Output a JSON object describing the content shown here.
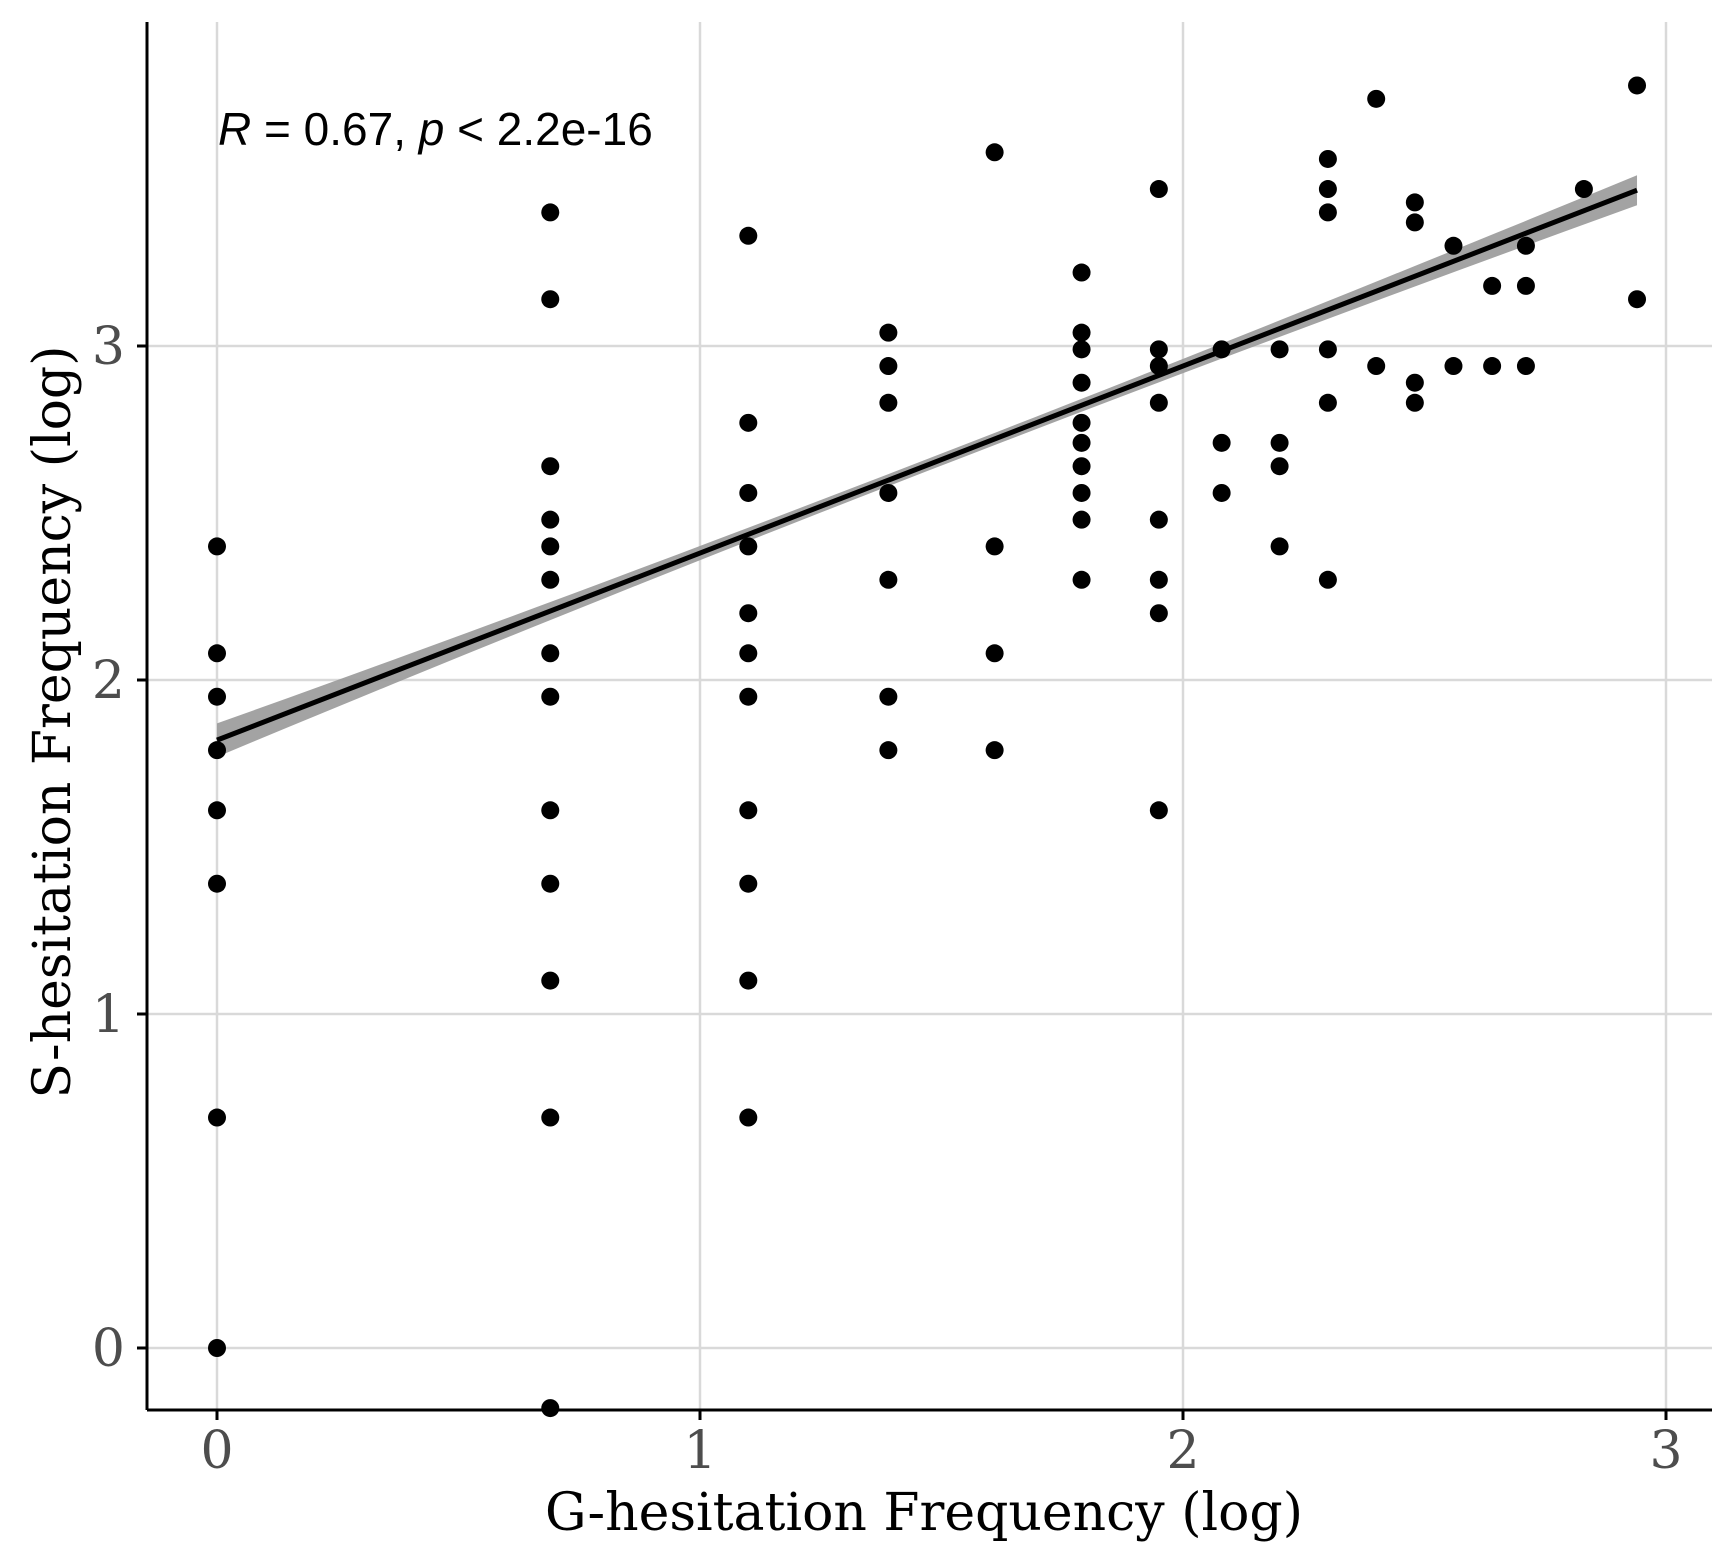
{
  "chart_data": {
    "type": "scatter",
    "xlabel": "G-hesitation Frequency (log)",
    "ylabel": "S-hesitation Frequency (log)",
    "xlim": [
      -0.14,
      3.03
    ],
    "ylim": [
      -0.19,
      4.0
    ],
    "x_ticks": [
      0,
      1,
      2,
      3
    ],
    "y_ticks": [
      0,
      1,
      2,
      3
    ],
    "x_tick_labels": [
      "0",
      "1",
      "2",
      "3"
    ],
    "y_tick_labels": [
      "0",
      "1",
      "2",
      "3"
    ],
    "grid": true,
    "annotation": {
      "r_symbol": "R",
      "r_text": " = 0.67, ",
      "p_symbol": "p",
      "p_text": " < 2.2e-16"
    },
    "fit": {
      "method": "linear",
      "slope": 0.56,
      "intercept": 1.82,
      "x_range": [
        0,
        2.94
      ],
      "ci_halfwidth_start": 0.05,
      "ci_halfwidth_mid": 0.018,
      "ci_halfwidth_end": 0.045
    },
    "points": [
      {
        "x": 0,
        "y": 2.4
      },
      {
        "x": 0,
        "y": 2.08
      },
      {
        "x": 0,
        "y": 1.95
      },
      {
        "x": 0,
        "y": 1.79
      },
      {
        "x": 0,
        "y": 1.61
      },
      {
        "x": 0,
        "y": 1.39
      },
      {
        "x": 0,
        "y": 0.69
      },
      {
        "x": 0,
        "y": 0
      },
      {
        "x": 0.69,
        "y": 3.4
      },
      {
        "x": 0.69,
        "y": 3.14
      },
      {
        "x": 0.69,
        "y": 2.64
      },
      {
        "x": 0.69,
        "y": 2.48
      },
      {
        "x": 0.69,
        "y": 2.4
      },
      {
        "x": 0.69,
        "y": 2.3
      },
      {
        "x": 0.69,
        "y": 2.08
      },
      {
        "x": 0.69,
        "y": 1.95
      },
      {
        "x": 0.69,
        "y": 1.61
      },
      {
        "x": 0.69,
        "y": 1.39
      },
      {
        "x": 0.69,
        "y": 1.1
      },
      {
        "x": 0.69,
        "y": 0.69
      },
      {
        "x": 0.69,
        "y": -0.18
      },
      {
        "x": 1.1,
        "y": 3.33
      },
      {
        "x": 1.1,
        "y": 2.77
      },
      {
        "x": 1.1,
        "y": 2.56
      },
      {
        "x": 1.1,
        "y": 2.4
      },
      {
        "x": 1.1,
        "y": 2.2
      },
      {
        "x": 1.1,
        "y": 2.08
      },
      {
        "x": 1.1,
        "y": 1.95
      },
      {
        "x": 1.1,
        "y": 1.61
      },
      {
        "x": 1.1,
        "y": 1.39
      },
      {
        "x": 1.1,
        "y": 1.1
      },
      {
        "x": 1.1,
        "y": 0.69
      },
      {
        "x": 1.39,
        "y": 3.04
      },
      {
        "x": 1.39,
        "y": 2.94
      },
      {
        "x": 1.39,
        "y": 2.83
      },
      {
        "x": 1.39,
        "y": 2.56
      },
      {
        "x": 1.39,
        "y": 2.3
      },
      {
        "x": 1.39,
        "y": 1.95
      },
      {
        "x": 1.39,
        "y": 1.79
      },
      {
        "x": 1.61,
        "y": 3.58
      },
      {
        "x": 1.61,
        "y": 2.4
      },
      {
        "x": 1.61,
        "y": 2.08
      },
      {
        "x": 1.61,
        "y": 1.79
      },
      {
        "x": 1.79,
        "y": 3.22
      },
      {
        "x": 1.79,
        "y": 3.04
      },
      {
        "x": 1.79,
        "y": 2.99
      },
      {
        "x": 1.79,
        "y": 2.89
      },
      {
        "x": 1.79,
        "y": 2.77
      },
      {
        "x": 1.79,
        "y": 2.71
      },
      {
        "x": 1.79,
        "y": 2.64
      },
      {
        "x": 1.79,
        "y": 2.56
      },
      {
        "x": 1.79,
        "y": 2.48
      },
      {
        "x": 1.79,
        "y": 2.3
      },
      {
        "x": 1.95,
        "y": 3.47
      },
      {
        "x": 1.95,
        "y": 2.99
      },
      {
        "x": 1.95,
        "y": 2.94
      },
      {
        "x": 1.95,
        "y": 2.83
      },
      {
        "x": 1.95,
        "y": 2.48
      },
      {
        "x": 1.95,
        "y": 2.3
      },
      {
        "x": 1.95,
        "y": 2.2
      },
      {
        "x": 1.95,
        "y": 1.61
      },
      {
        "x": 2.08,
        "y": 2.99
      },
      {
        "x": 2.08,
        "y": 2.71
      },
      {
        "x": 2.08,
        "y": 2.56
      },
      {
        "x": 2.2,
        "y": 2.99
      },
      {
        "x": 2.2,
        "y": 2.71
      },
      {
        "x": 2.2,
        "y": 2.64
      },
      {
        "x": 2.2,
        "y": 2.4
      },
      {
        "x": 2.3,
        "y": 3.56
      },
      {
        "x": 2.3,
        "y": 3.47
      },
      {
        "x": 2.3,
        "y": 3.4
      },
      {
        "x": 2.3,
        "y": 2.99
      },
      {
        "x": 2.3,
        "y": 2.83
      },
      {
        "x": 2.3,
        "y": 2.3
      },
      {
        "x": 2.4,
        "y": 3.74
      },
      {
        "x": 2.4,
        "y": 2.94
      },
      {
        "x": 2.48,
        "y": 3.43
      },
      {
        "x": 2.48,
        "y": 3.37
      },
      {
        "x": 2.48,
        "y": 2.89
      },
      {
        "x": 2.48,
        "y": 2.83
      },
      {
        "x": 2.56,
        "y": 3.3
      },
      {
        "x": 2.56,
        "y": 2.94
      },
      {
        "x": 2.64,
        "y": 3.18
      },
      {
        "x": 2.64,
        "y": 2.94
      },
      {
        "x": 2.71,
        "y": 3.3
      },
      {
        "x": 2.71,
        "y": 3.18
      },
      {
        "x": 2.71,
        "y": 2.94
      },
      {
        "x": 2.83,
        "y": 3.47
      },
      {
        "x": 2.94,
        "y": 3.78
      },
      {
        "x": 2.94,
        "y": 3.14
      }
    ]
  }
}
